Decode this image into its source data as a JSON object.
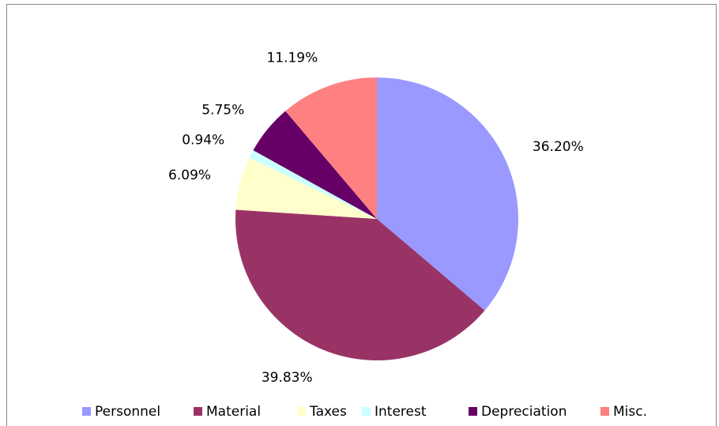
{
  "chart_data": {
    "type": "pie",
    "categories": [
      "Personnel",
      "Material",
      "Taxes",
      "Interest",
      "Depreciation",
      "Misc."
    ],
    "values": [
      36.2,
      39.83,
      6.09,
      0.94,
      5.75,
      11.19
    ],
    "value_labels": [
      "36.20%",
      "39.83%",
      "6.09%",
      "0.94%",
      "5.75%",
      "11.19%"
    ],
    "colors": [
      "#9999ff",
      "#993366",
      "#ffffcc",
      "#ccffff",
      "#660066",
      "#ff8080"
    ],
    "legend": "bottom"
  }
}
